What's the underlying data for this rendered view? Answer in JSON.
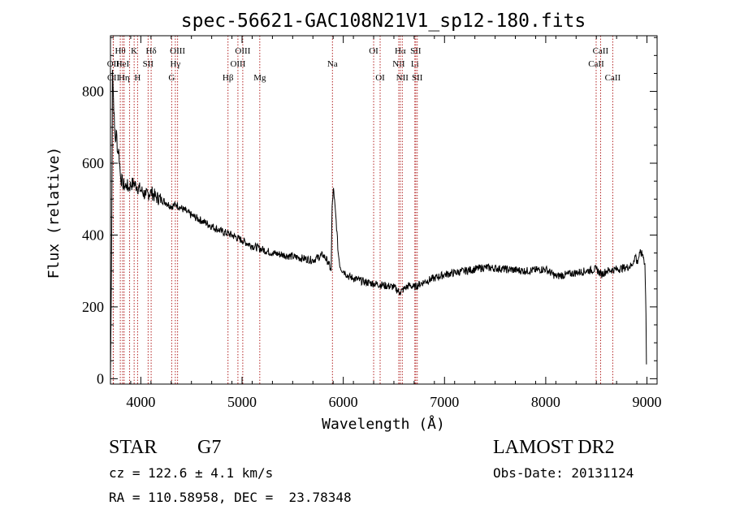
{
  "chart_data": {
    "type": "line",
    "title": "spec-56621-GAC108N21V1_sp12-180.fits",
    "xlabel": "Wavelength (Å)",
    "ylabel": "Flux (relative)",
    "xlim": [
      3700,
      9100
    ],
    "ylim": [
      -15,
      955
    ],
    "xticks": [
      4000,
      5000,
      6000,
      7000,
      8000,
      9000
    ],
    "xtick_labels": [
      "4000",
      "5000",
      "6000",
      "7000",
      "8000",
      "9000"
    ],
    "yticks": [
      0,
      200,
      400,
      600,
      800
    ],
    "ytick_labels": [
      "0",
      "200",
      "400",
      "600",
      "800"
    ],
    "grid": false,
    "line_color": "#000000",
    "marker_color": "#b22222",
    "series": [
      {
        "x": [
          3700,
          3710,
          3720,
          3730,
          3740,
          3750,
          3760,
          3770,
          3780,
          3790,
          3800,
          3820,
          3840,
          3860,
          3880,
          3900,
          3930,
          3960,
          4000,
          4050,
          4100,
          4150,
          4200,
          4250,
          4300,
          4350,
          4400,
          4450,
          4500,
          4600,
          4700,
          4800,
          4900,
          5000,
          5100,
          5200,
          5300,
          5400,
          5500,
          5600,
          5700,
          5800,
          5850,
          5880,
          5890,
          5900,
          5910,
          5930,
          5950,
          5970,
          6000,
          6020,
          6050,
          6100,
          6200,
          6300,
          6400,
          6500,
          6560,
          6600,
          6650,
          6700,
          6800,
          6900,
          7000,
          7200,
          7400,
          7600,
          7800,
          8000,
          8100,
          8200,
          8300,
          8400,
          8500,
          8550,
          8600,
          8700,
          8800,
          8850,
          8870,
          8890,
          8900,
          8930,
          8960,
          8970,
          8980,
          8990,
          8995
        ],
        "y": [
          0,
          300,
          860,
          780,
          700,
          660,
          690,
          630,
          640,
          600,
          560,
          545,
          535,
          540,
          530,
          540,
          545,
          535,
          525,
          510,
          520,
          505,
          500,
          490,
          480,
          485,
          475,
          465,
          455,
          440,
          425,
          410,
          400,
          385,
          370,
          360,
          350,
          345,
          340,
          335,
          330,
          345,
          325,
          300,
          480,
          525,
          505,
          440,
          350,
          310,
          300,
          295,
          285,
          280,
          270,
          265,
          260,
          255,
          240,
          250,
          260,
          255,
          270,
          280,
          290,
          300,
          310,
          305,
          300,
          305,
          285,
          290,
          295,
          300,
          305,
          290,
          300,
          305,
          310,
          315,
          330,
          345,
          320,
          350,
          345,
          330,
          320,
          180,
          40
        ]
      }
    ],
    "lines": [
      {
        "x": 3727,
        "label": "OII",
        "row": 2
      },
      {
        "x": 3729,
        "label": "OII",
        "row": 3
      },
      {
        "x": 3797,
        "label": "Hθ",
        "row": 1
      },
      {
        "x": 3820,
        "label": "HeI",
        "row": 2
      },
      {
        "x": 3835,
        "label": "Hη",
        "row": 3
      },
      {
        "x": 3889,
        "label": "",
        "row": 0
      },
      {
        "x": 3934,
        "label": "K",
        "row": 1
      },
      {
        "x": 3968,
        "label": "H",
        "row": 3
      },
      {
        "x": 4072,
        "label": "SII",
        "row": 2
      },
      {
        "x": 4102,
        "label": "Hδ",
        "row": 1
      },
      {
        "x": 4305,
        "label": "G",
        "row": 3
      },
      {
        "x": 4341,
        "label": "Hγ",
        "row": 2
      },
      {
        "x": 4363,
        "label": "OIII",
        "row": 1
      },
      {
        "x": 4861,
        "label": "Hβ",
        "row": 3
      },
      {
        "x": 4959,
        "label": "OIII",
        "row": 2
      },
      {
        "x": 5007,
        "label": "OIII",
        "row": 1
      },
      {
        "x": 5175,
        "label": "Mg",
        "row": 3
      },
      {
        "x": 5893,
        "label": "Na",
        "row": 2
      },
      {
        "x": 6300,
        "label": "OI",
        "row": 1
      },
      {
        "x": 6364,
        "label": "OI",
        "row": 3
      },
      {
        "x": 6548,
        "label": "NII",
        "row": 2
      },
      {
        "x": 6563,
        "label": "Hα",
        "row": 1
      },
      {
        "x": 6583,
        "label": "NII",
        "row": 3
      },
      {
        "x": 6707,
        "label": "Li",
        "row": 2
      },
      {
        "x": 6716,
        "label": "SII",
        "row": 1
      },
      {
        "x": 6731,
        "label": "SII",
        "row": 3
      },
      {
        "x": 8498,
        "label": "CaII",
        "row": 2
      },
      {
        "x": 8542,
        "label": "CaII",
        "row": 1
      },
      {
        "x": 8662,
        "label": "CaII",
        "row": 3
      }
    ]
  },
  "info": {
    "class": "STAR",
    "subclass": "G7",
    "redshift": "cz = 122.6 ± 4.1 km/s",
    "coords": "RA = 110.58958, DEC =  23.78348",
    "survey": "LAMOST DR2",
    "obs_date": "Obs-Date: 20131124"
  }
}
